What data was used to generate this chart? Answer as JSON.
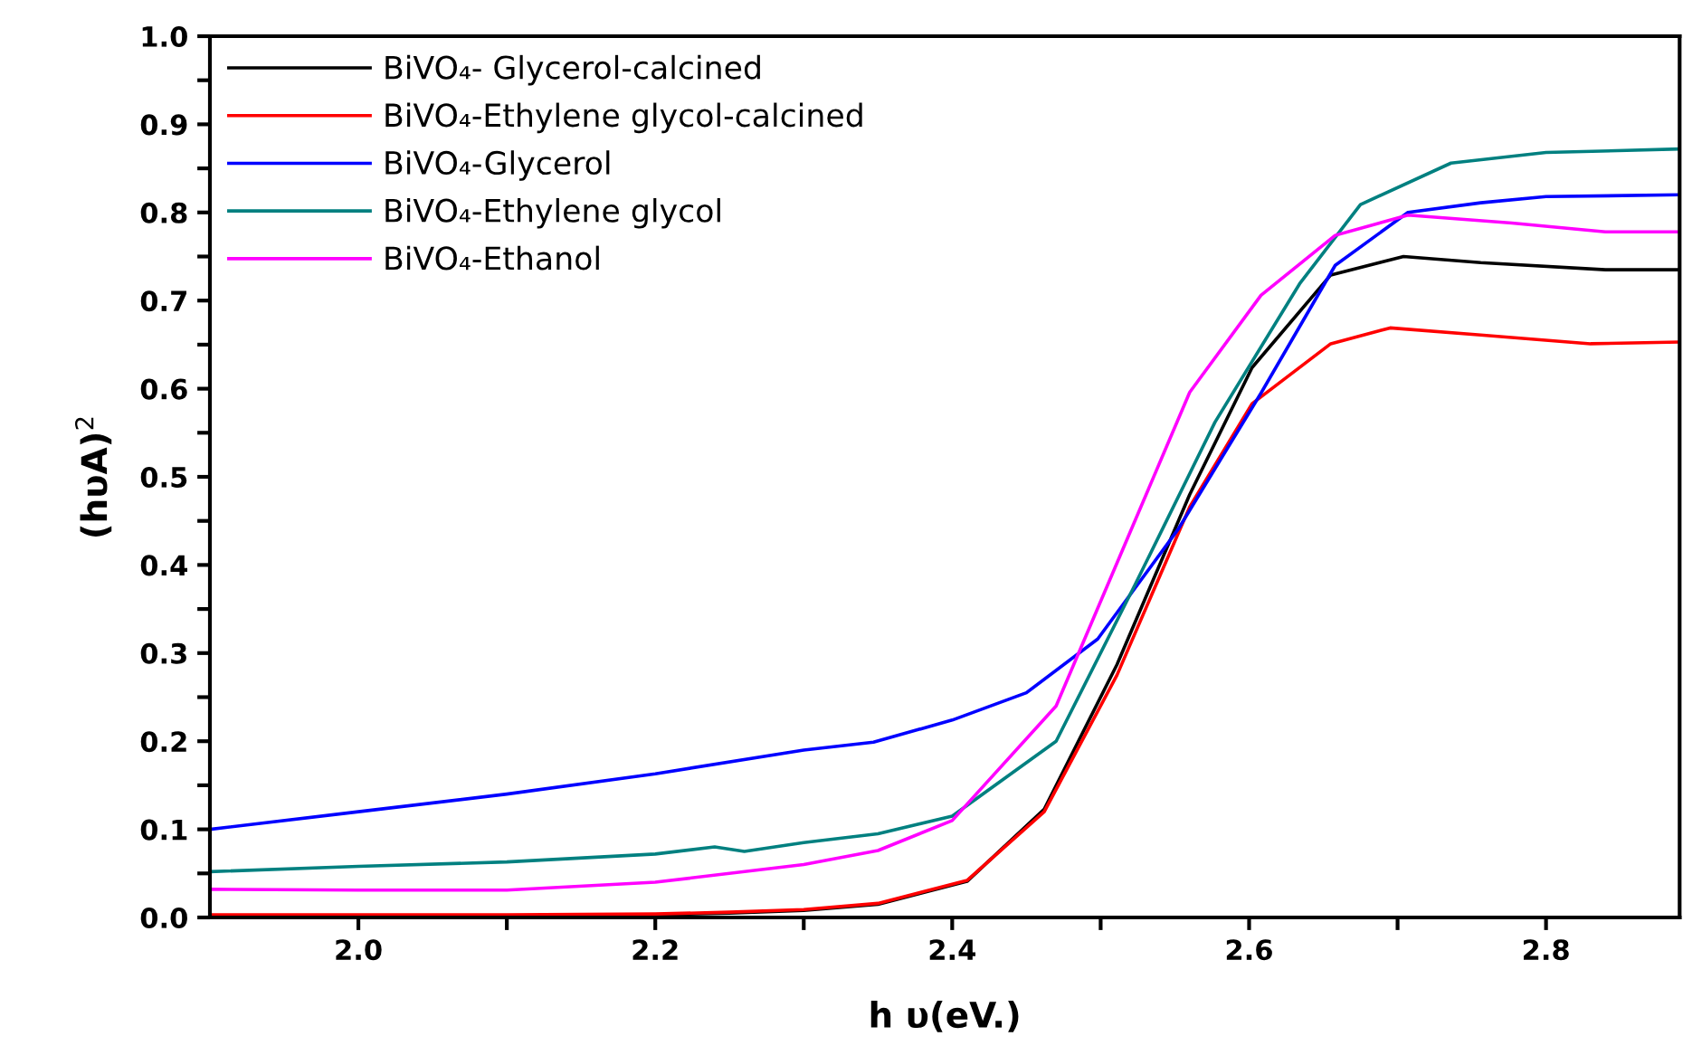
{
  "chart_data": {
    "type": "line",
    "xlabel": "h υ(eV.)",
    "ylabel": "(hυA)$^{2}$",
    "xlim": [
      1.9,
      2.89
    ],
    "ylim": [
      0,
      1.0
    ],
    "xticks": [
      {
        "value": 2.0,
        "label": "2.0"
      },
      {
        "value": 2.1,
        "label": null
      },
      {
        "value": 2.2,
        "label": "2.2"
      },
      {
        "value": 2.3,
        "label": null
      },
      {
        "value": 2.4,
        "label": "2.4"
      },
      {
        "value": 2.5,
        "label": null
      },
      {
        "value": 2.6,
        "label": "2.6"
      },
      {
        "value": 2.7,
        "label": null
      },
      {
        "value": 2.8,
        "label": "2.8"
      }
    ],
    "yticks": [
      {
        "value": 0,
        "label": "0.0"
      },
      {
        "value": 0.05,
        "label": null
      },
      {
        "value": 0.1,
        "label": "0.1"
      },
      {
        "value": 0.15,
        "label": null
      },
      {
        "value": 0.2,
        "label": "0.2"
      },
      {
        "value": 0.25,
        "label": null
      },
      {
        "value": 0.3,
        "label": "0.3"
      },
      {
        "value": 0.35,
        "label": null
      },
      {
        "value": 0.4,
        "label": "0.4"
      },
      {
        "value": 0.45,
        "label": null
      },
      {
        "value": 0.5,
        "label": "0.5"
      },
      {
        "value": 0.55,
        "label": null
      },
      {
        "value": 0.6,
        "label": "0.6"
      },
      {
        "value": 0.65,
        "label": null
      },
      {
        "value": 0.7,
        "label": "0.7"
      },
      {
        "value": 0.75,
        "label": null
      },
      {
        "value": 0.8,
        "label": "0.8"
      },
      {
        "value": 0.85,
        "label": null
      },
      {
        "value": 0.9,
        "label": "0.9"
      },
      {
        "value": 0.95,
        "label": null
      },
      {
        "value": 1.0,
        "label": "1.0"
      }
    ],
    "grid": false,
    "legend": "top left",
    "marker": "none",
    "line_style": "solid",
    "series": [
      {
        "name": "BiVO₄- Glycerol-calcined",
        "color": "#000000",
        "x": [
          1.9,
          2.0,
          2.1,
          2.2,
          2.25,
          2.3,
          2.35,
          2.41,
          2.462,
          2.511,
          2.56,
          2.602,
          2.655,
          2.704,
          2.756,
          2.84,
          2.89
        ],
        "values": [
          0.002,
          0.002,
          0.002,
          0.003,
          0.005,
          0.008,
          0.015,
          0.041,
          0.123,
          0.287,
          0.48,
          0.624,
          0.729,
          0.75,
          0.743,
          0.735,
          0.735
        ]
      },
      {
        "name": "BiVO₄-Ethylene glycol-calcined",
        "color": "#ff0000",
        "x": [
          1.9,
          2.0,
          2.1,
          2.2,
          2.25,
          2.3,
          2.35,
          2.41,
          2.462,
          2.511,
          2.56,
          2.602,
          2.655,
          2.695,
          2.756,
          2.83,
          2.89
        ],
        "values": [
          0.003,
          0.003,
          0.003,
          0.004,
          0.006,
          0.009,
          0.016,
          0.042,
          0.12,
          0.275,
          0.466,
          0.583,
          0.651,
          0.669,
          0.661,
          0.651,
          0.653
        ]
      },
      {
        "name": "BiVO₄-Glycerol",
        "color": "#0000ff",
        "x": [
          1.9,
          2.0,
          2.1,
          2.2,
          2.3,
          2.347,
          2.4,
          2.45,
          2.498,
          2.552,
          2.608,
          2.658,
          2.707,
          2.756,
          2.8,
          2.89
        ],
        "values": [
          0.1,
          0.12,
          0.14,
          0.163,
          0.19,
          0.199,
          0.224,
          0.255,
          0.316,
          0.44,
          0.595,
          0.74,
          0.8,
          0.811,
          0.818,
          0.82
        ]
      },
      {
        "name": "BiVO₄-Ethylene glycol",
        "color": "#008080",
        "x": [
          1.9,
          2.0,
          2.1,
          2.2,
          2.24,
          2.26,
          2.3,
          2.35,
          2.4,
          2.47,
          2.523,
          2.577,
          2.634,
          2.675,
          2.736,
          2.8,
          2.89
        ],
        "values": [
          0.052,
          0.058,
          0.063,
          0.072,
          0.08,
          0.075,
          0.085,
          0.095,
          0.115,
          0.2,
          0.377,
          0.562,
          0.719,
          0.809,
          0.856,
          0.868,
          0.872
        ]
      },
      {
        "name": "BiVO₄-Ethanol",
        "color": "#ff00ff",
        "x": [
          1.9,
          2.0,
          2.1,
          2.2,
          2.3,
          2.35,
          2.4,
          2.47,
          2.518,
          2.56,
          2.608,
          2.658,
          2.707,
          2.777,
          2.84,
          2.89
        ],
        "values": [
          0.032,
          0.031,
          0.031,
          0.04,
          0.06,
          0.076,
          0.11,
          0.24,
          0.43,
          0.596,
          0.706,
          0.774,
          0.797,
          0.788,
          0.778,
          0.778
        ]
      }
    ]
  }
}
